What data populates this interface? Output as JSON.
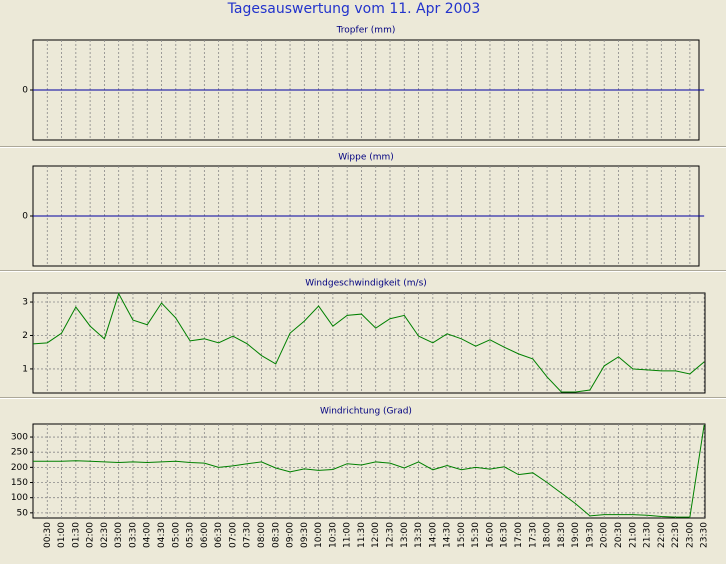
{
  "title": "Tagesauswertung vom 11. Apr 2003",
  "chart_data": [
    {
      "type": "line",
      "title": "Tropfer (mm)",
      "color": "#0000a0",
      "ylim": [
        -1,
        1
      ],
      "yticks": [
        0
      ],
      "grid": true,
      "values": [
        0,
        0,
        0,
        0,
        0,
        0,
        0,
        0,
        0,
        0,
        0,
        0,
        0,
        0,
        0,
        0,
        0,
        0,
        0,
        0,
        0,
        0,
        0,
        0,
        0,
        0,
        0,
        0,
        0,
        0,
        0,
        0,
        0,
        0,
        0,
        0,
        0,
        0,
        0,
        0,
        0,
        0,
        0,
        0,
        0,
        0,
        0,
        0
      ]
    },
    {
      "type": "line",
      "title": "Wippe (mm)",
      "color": "#0000a0",
      "ylim": [
        -1,
        1
      ],
      "yticks": [
        0
      ],
      "grid": true,
      "values": [
        0,
        0,
        0,
        0,
        0,
        0,
        0,
        0,
        0,
        0,
        0,
        0,
        0,
        0,
        0,
        0,
        0,
        0,
        0,
        0,
        0,
        0,
        0,
        0,
        0,
        0,
        0,
        0,
        0,
        0,
        0,
        0,
        0,
        0,
        0,
        0,
        0,
        0,
        0,
        0,
        0,
        0,
        0,
        0,
        0,
        0,
        0,
        0
      ]
    },
    {
      "type": "line",
      "title": "Windgeschwindigkeit (m/s)",
      "color": "#008000",
      "ylim": [
        0.28,
        3.27
      ],
      "yticks": [
        1,
        2,
        3
      ],
      "grid": true,
      "values": [
        1.75,
        1.78,
        2.07,
        2.85,
        2.28,
        1.9,
        3.25,
        2.46,
        2.32,
        2.97,
        2.52,
        1.84,
        1.9,
        1.78,
        1.98,
        1.75,
        1.4,
        1.15,
        2.07,
        2.43,
        2.88,
        2.28,
        2.6,
        2.64,
        2.22,
        2.5,
        2.6,
        1.98,
        1.78,
        2.05,
        1.9,
        1.68,
        1.87,
        1.65,
        1.45,
        1.3,
        0.76,
        0.31,
        0.31,
        0.37,
        1.09,
        1.36,
        1.0,
        0.97,
        0.94,
        0.94,
        0.85,
        1.21
      ]
    },
    {
      "type": "line",
      "title": "Windrichtung (Grad)",
      "color": "#008000",
      "ylim": [
        33,
        343
      ],
      "yticks": [
        50,
        100,
        150,
        200,
        250,
        300
      ],
      "grid": true,
      "categories": [
        null,
        "00:30",
        "01:00",
        "01:30",
        "02:00",
        "02:30",
        "03:00",
        "03:30",
        "04:00",
        "04:30",
        "05:00",
        "05:30",
        "06:00",
        "06:30",
        "07:00",
        "07:30",
        "08:00",
        "08:30",
        "09:00",
        "09:30",
        "10:00",
        "10:30",
        "11:00",
        "11:30",
        "12:00",
        "12:30",
        "13:00",
        "13:30",
        "14:00",
        "14:30",
        "15:00",
        "15:30",
        "16:00",
        "16:30",
        "17:00",
        "17:30",
        "18:00",
        "18:30",
        "19:00",
        "19:30",
        "20:00",
        "20:30",
        "21:00",
        "21:30",
        "22:00",
        "22:30",
        "23:00",
        "23:30"
      ],
      "values": [
        220,
        220,
        220,
        222,
        220,
        218,
        216,
        218,
        216,
        218,
        220,
        216,
        214,
        200,
        205,
        212,
        218,
        198,
        185,
        195,
        190,
        193,
        212,
        208,
        218,
        214,
        198,
        218,
        192,
        206,
        192,
        200,
        194,
        202,
        176,
        182,
        150,
        115,
        80,
        40,
        44,
        44,
        44,
        42,
        38,
        36,
        36,
        340
      ]
    }
  ]
}
